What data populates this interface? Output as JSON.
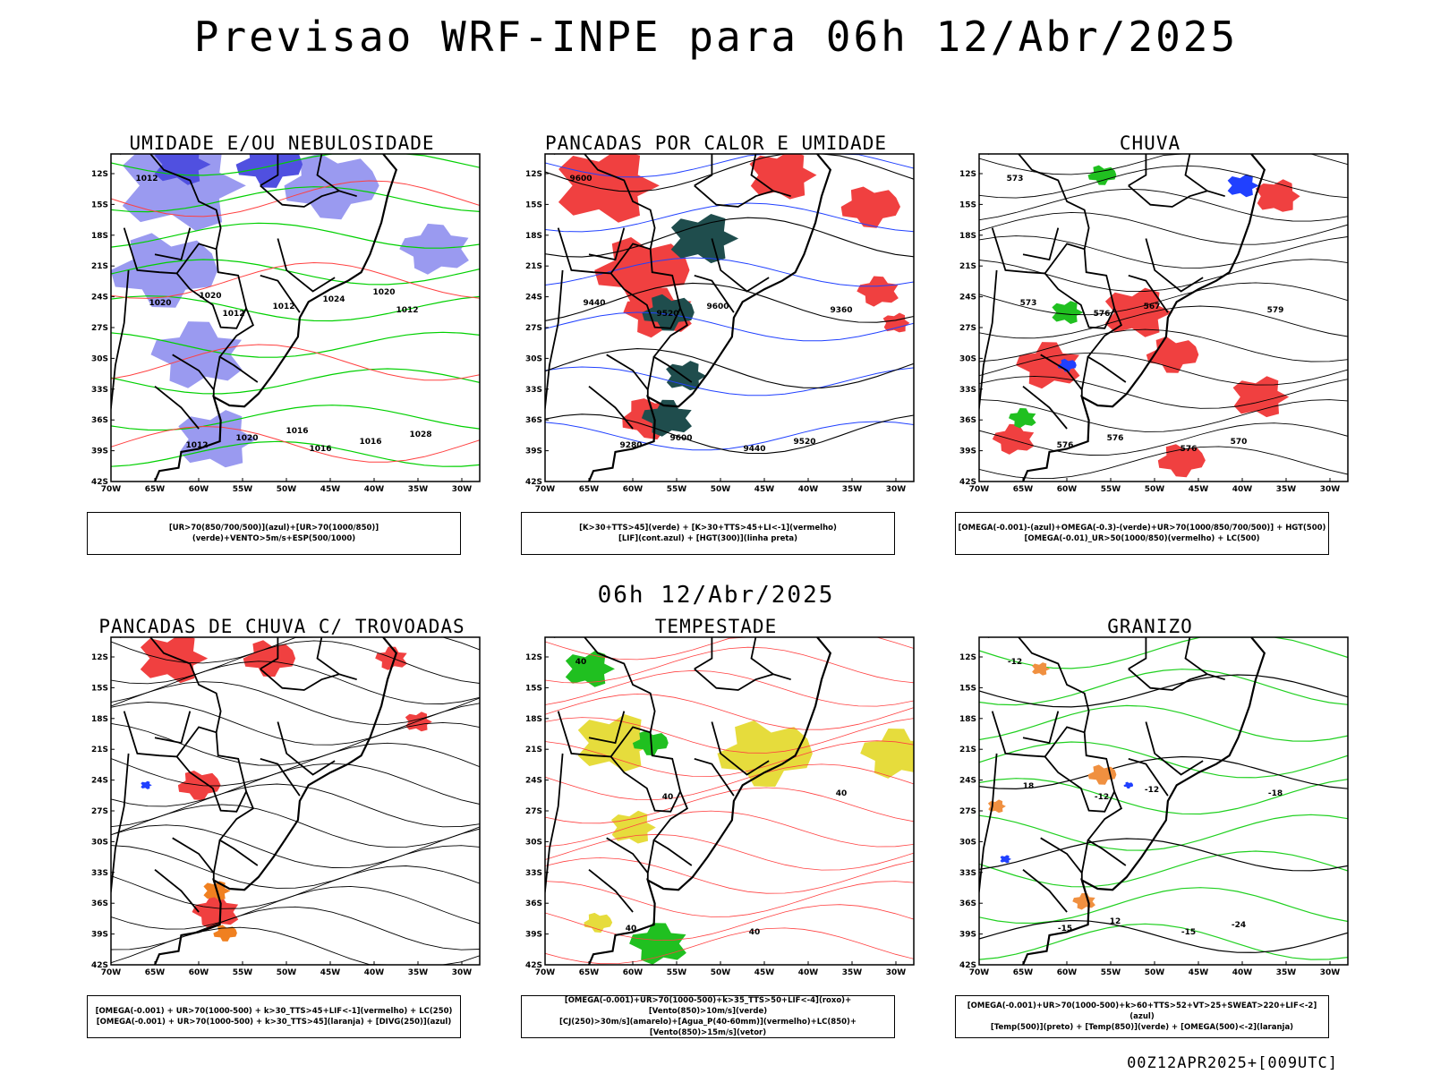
{
  "title": "Previsao WRF-INPE  para 06h 12/Abr/2025",
  "subtitle": "06h 12/Abr/2025",
  "footer": "00Z12APR2025+[009UTC]",
  "lat_labels": [
    "12S",
    "15S",
    "18S",
    "21S",
    "24S",
    "27S",
    "30S",
    "33S",
    "36S",
    "39S",
    "42S"
  ],
  "lon_labels": [
    "70W",
    "65W",
    "60W",
    "55W",
    "50W",
    "45W",
    "40W",
    "35W",
    "30W"
  ],
  "panels": [
    {
      "title": "UMIDADE E/OU NEBULOSIDADE",
      "legend": [
        "[UR>70(850/700/500)](azul)+[UR>70(1000/850)](verde)+VENTO>5m/s+ESP(500/1000)"
      ],
      "contour_labels": [
        "1012",
        "1012",
        "1016",
        "1012",
        "1012",
        "1012",
        "1016",
        "1020",
        "1020",
        "1024",
        "1028",
        "1020",
        "1016",
        "1020"
      ],
      "colors": {
        "fill_blue": "#9a9af0",
        "fill_blue_dark": "#5050e0",
        "contour_green": "#00d000",
        "contour_red": "#ff4040"
      }
    },
    {
      "title": "PANCADAS POR CALOR E UMIDADE",
      "legend": [
        "[K>30+TTS>45](verde) + [K>30+TTS>45+LI<-1](vermelho)",
        "[LIF](cont.azul) + [HGT(300)](linha preta)"
      ],
      "contour_labels": [
        "9600",
        "9520",
        "9440",
        "9360",
        "9280",
        "9600",
        "9520",
        "9440",
        "9600"
      ],
      "colors": {
        "fill_red": "#f04040",
        "fill_darkgreen": "#1f4d4d",
        "contour_blue": "#2040ff"
      }
    },
    {
      "title": "CHUVA",
      "legend": [
        "[OMEGA(-0.001)-(azul)+OMEGA(-0.3)-(verde)+UR>70(1000/850/700/500)] + HGT(500)",
        "[OMEGA(-0.01)_UR>50(1000/850)(vermelho) + LC(500)"
      ],
      "contour_labels": [
        "573",
        "576",
        "576",
        "579",
        "576",
        "567",
        "570",
        "573",
        "576"
      ],
      "colors": {
        "fill_red": "#f04040",
        "fill_green": "#20c020",
        "fill_blue": "#2040ff"
      }
    },
    {
      "title": "PANCADAS DE CHUVA C/ TROVOADAS",
      "legend": [
        "[OMEGA(-0.001) + UR>70(1000-500) + k>30_TTS>45+LIF<-1](vermelho) + LC(250)",
        "[OMEGA(-0.001) + UR>70(1000-500) + k>30_TTS>45](laranja) + [DIVG(250)](azul)"
      ],
      "contour_labels": [],
      "colors": {
        "fill_red": "#f04040",
        "fill_orange": "#f08020",
        "fill_blue": "#2040ff"
      }
    },
    {
      "title": "TEMPESTADE",
      "legend": [
        "[OMEGA(-0.001)+UR>70(1000-500)+k>35_TTS>50+LIF<-4](roxo)+[Vento(850)>10m/s](verde)",
        "[CJ(250)>30m/s](amarelo)+[Agua_P(40-60mm)](vermelho)+LC(850)+[Vento(850)>15m/s](vetor)"
      ],
      "contour_labels": [
        "40",
        "40",
        "40",
        "40",
        "40"
      ],
      "colors": {
        "fill_yellow": "#e6dc3c",
        "fill_green": "#20c020",
        "contour_red": "#ff4040"
      }
    },
    {
      "title": "GRANIZO",
      "legend": [
        "[OMEGA(-0.001)+UR>70(1000-500)+k>60+TTS>52+VT>25+SWEAT>220+LIF<-2](azul)",
        "[Temp(500)](preto) + [Temp(850)](verde) + [OMEGA(500)<-2](laranja)"
      ],
      "contour_labels": [
        "-12",
        "-12",
        "-15",
        "-18",
        "-15",
        "-12",
        "-24",
        "18",
        "12"
      ],
      "colors": {
        "contour_green": "#20d020",
        "fill_orange": "#f09040",
        "fill_blue": "#2040ff"
      }
    }
  ]
}
